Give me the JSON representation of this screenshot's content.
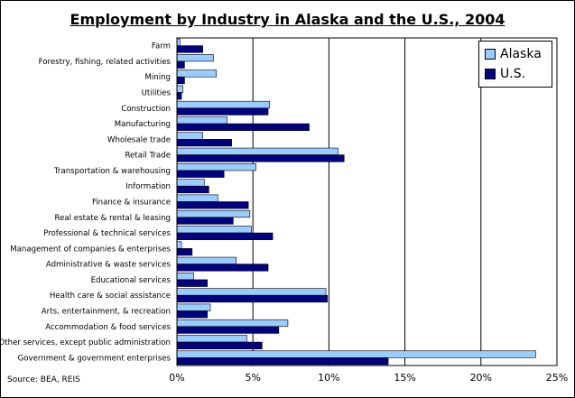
{
  "title": "Employment by Industry in Alaska and the U.S., 2004",
  "source": "Source: BEA, REIS",
  "colors": {
    "alaska": "#99CCFF",
    "us": "#000080",
    "grid": "#000000"
  },
  "chart_data": {
    "type": "bar",
    "orientation": "horizontal",
    "title": "Employment by Industry in Alaska and the U.S., 2004",
    "categories": [
      "Farm",
      "Forestry, fishing, related activities",
      "Mining",
      "Utilities",
      "Construction",
      "Manufacturing",
      "Wholesale trade",
      "Retail Trade",
      "Transportation & warehousing",
      "Information",
      "Finance & insurance",
      "Real estate & rental & leasing",
      "Professional & technical services",
      "Management of companies & enterprises",
      "Administrative & waste services",
      "Educational services",
      "Health care & social assistance",
      "Arts, entertainment, & recreation",
      "Accommodation & food services",
      "Other services, except public administration",
      "Government & government enterprises"
    ],
    "series": [
      {
        "name": "Alaska",
        "values": [
          0.2,
          2.4,
          2.6,
          0.4,
          6.1,
          3.3,
          1.7,
          10.6,
          5.2,
          1.8,
          2.7,
          4.8,
          4.9,
          0.3,
          3.9,
          1.1,
          9.8,
          2.2,
          7.3,
          4.6,
          23.6
        ]
      },
      {
        "name": "U.S.",
        "values": [
          1.7,
          0.5,
          0.5,
          0.3,
          6.0,
          8.7,
          3.6,
          11.0,
          3.1,
          2.1,
          4.7,
          3.7,
          6.3,
          1.0,
          6.0,
          2.0,
          9.9,
          2.0,
          6.7,
          5.6,
          13.9
        ]
      }
    ],
    "x_ticks": [
      "0%",
      "5%",
      "10%",
      "15%",
      "20%",
      "25%"
    ],
    "xlim": [
      0,
      25
    ],
    "grid": "vertical major gridlines",
    "legend_position": "top-right"
  },
  "legend": [
    {
      "label": "Alaska",
      "color": "#99CCFF"
    },
    {
      "label": "U.S.",
      "color": "#000080"
    }
  ]
}
